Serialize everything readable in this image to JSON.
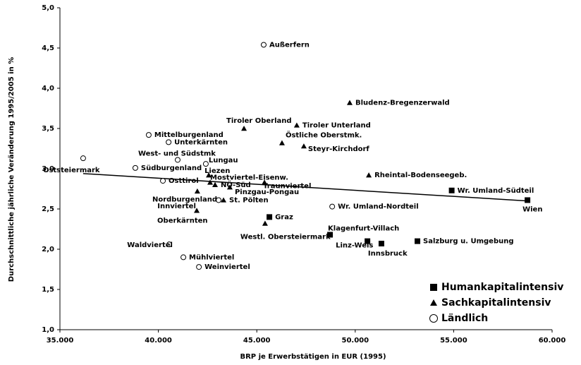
{
  "chart_data": {
    "type": "scatter",
    "x_label": "BRP je Erwerbstätigen in EUR (1995)",
    "y_label": "Durchschnittliche jährliche Veränderung 1995/2005 in %",
    "xlim": [
      35000,
      60000
    ],
    "xticks": [
      {
        "value": 35000,
        "label": "35.000"
      },
      {
        "value": 40000,
        "label": "40.000"
      },
      {
        "value": 45000,
        "label": "45.000"
      },
      {
        "value": 50000,
        "label": "50.000"
      },
      {
        "value": 55000,
        "label": "55.000"
      },
      {
        "value": 60000,
        "label": "60.000"
      }
    ],
    "ylim": [
      1,
      5
    ],
    "yticks": [
      {
        "value": 1,
        "label": "1,0"
      },
      {
        "value": 1.5,
        "label": "1,5"
      },
      {
        "value": 2,
        "label": "2,0"
      },
      {
        "value": 2.5,
        "label": "2,5"
      },
      {
        "value": 3,
        "label": "3,0"
      },
      {
        "value": 3.5,
        "label": "3,5"
      },
      {
        "value": 4,
        "label": "4,0"
      },
      {
        "value": 4.5,
        "label": "4,5"
      },
      {
        "value": 5,
        "label": "5,0"
      }
    ],
    "grid": false,
    "legend": "lower right",
    "series": [
      {
        "name": "Humankapitalintensiv",
        "marker": "square",
        "color": "#000000",
        "labels": [
          "Wr. Umland-Südteil",
          "Wien",
          "Graz",
          "Klagenfurt-Villach",
          "Linz-Wels",
          "Innsbruck",
          "Salzburg u. Umgebung"
        ],
        "x": [
          54900,
          58750,
          45640,
          48720,
          50620,
          51330,
          53160
        ],
        "values": [
          2.73,
          2.61,
          2.4,
          2.18,
          2.1,
          2.07,
          2.1
        ]
      },
      {
        "name": "Sachkapitalintensiv",
        "marker": "triangle",
        "color": "#000000",
        "labels": [
          "Bludenz-Bregenzerwald",
          "Tiroler Oberland",
          "Tiroler Unterland",
          "Östliche Oberstmk.",
          "Steyr-Kirchdorf",
          "Rheintal-Bodenseegeb.",
          "Liezen",
          "Mostviertel-Eisenw.",
          "Traunviertel",
          "NÖ-Süd",
          "Pinzgau-Pongau",
          "St. Pölten",
          "Innviertel",
          "Oberkärnten",
          "Westl. Obersteiermark"
        ],
        "x": [
          49720,
          44350,
          47030,
          46280,
          47390,
          50690,
          42560,
          42630,
          45390,
          42880,
          43630,
          43310,
          41980,
          41950,
          45420
        ],
        "values": [
          3.82,
          3.5,
          3.54,
          3.32,
          3.28,
          2.92,
          2.92,
          2.83,
          2.83,
          2.8,
          2.77,
          2.61,
          2.72,
          2.48,
          2.32
        ]
      },
      {
        "name": "Ländlich",
        "marker": "circle",
        "color": "#000000",
        "labels": [
          "Außerfern",
          "Mittelburgenland",
          "Unterkärnten",
          "West- und Südstmk",
          "Oststeiermark",
          "Südburgenland",
          "Lungau",
          "Osttirol",
          "Nordburgenland",
          "Wr. Umland-Nordteil",
          "Waldviertel",
          "Mühlviertel",
          "Weinviertel"
        ],
        "x": [
          45350,
          39510,
          40520,
          40980,
          36180,
          38830,
          42410,
          40230,
          43060,
          48830,
          40550,
          41270,
          42060
        ],
        "values": [
          4.54,
          3.42,
          3.33,
          3.11,
          3.13,
          3.01,
          3.06,
          2.85,
          2.61,
          2.53,
          2.06,
          1.9,
          1.78
        ]
      }
    ],
    "trendline": {
      "x": [
        36180,
        58750
      ],
      "values": [
        2.94,
        2.6
      ]
    }
  }
}
